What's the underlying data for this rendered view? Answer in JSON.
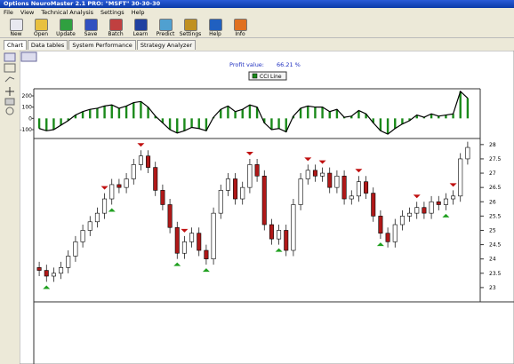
{
  "window": {
    "title": "Options NeuroMaster 2.1 PRO: \"MSFT\" 30-30-30"
  },
  "menu": [
    "File",
    "View",
    "Technical Analysis",
    "Settings",
    "Help"
  ],
  "toolbar": [
    "New",
    "Open",
    "Update",
    "Save",
    "Batch",
    "Learn",
    "Predict",
    "Settings",
    "Help",
    "Info"
  ],
  "tabs": [
    "Chart",
    "Data tables",
    "System Performance",
    "Strategy Analyzer"
  ],
  "profit": {
    "label": "Profit value:",
    "value": "66.21 %"
  },
  "chart_data": [
    {
      "type": "bar",
      "series": [
        {
          "name": "CCI Line",
          "color": "#1a8a1a",
          "values": [
            -90,
            -110,
            -100,
            -60,
            -20,
            30,
            60,
            80,
            90,
            110,
            120,
            90,
            110,
            140,
            150,
            100,
            20,
            -40,
            -100,
            -130,
            -110,
            -80,
            -90,
            -110,
            10,
            80,
            110,
            60,
            80,
            120,
            100,
            -40,
            -100,
            -90,
            -120,
            20,
            90,
            110,
            100,
            100,
            60,
            80,
            10,
            20,
            70,
            40,
            -40,
            -110,
            -140,
            -90,
            -50,
            -20,
            30,
            10,
            40,
            20,
            30,
            40,
            240,
            180
          ]
        }
      ],
      "ylim": [
        -163,
        263
      ],
      "yticks": [
        200,
        100,
        0,
        -100
      ]
    },
    {
      "type": "candlestick",
      "up_color": "#ffffff",
      "down_color": "#b01818",
      "open": [
        23.7,
        23.6,
        23.4,
        23.5,
        23.7,
        24.1,
        24.6,
        25.0,
        25.3,
        25.6,
        26.1,
        26.6,
        26.5,
        26.8,
        27.3,
        27.6,
        27.2,
        26.4,
        25.9,
        25.1,
        24.2,
        24.6,
        24.9,
        24.3,
        24.0,
        25.6,
        26.4,
        26.8,
        26.1,
        26.5,
        27.3,
        26.9,
        25.2,
        24.7,
        25.0,
        24.3,
        25.9,
        26.8,
        27.1,
        26.9,
        27.0,
        26.5,
        26.9,
        26.1,
        26.2,
        26.7,
        26.3,
        25.5,
        24.9,
        24.6,
        25.2,
        25.5,
        25.6,
        25.8,
        25.6,
        26.0,
        25.9,
        26.1,
        26.2,
        27.5
      ],
      "high": [
        23.9,
        23.8,
        23.7,
        23.9,
        24.3,
        24.8,
        25.2,
        25.5,
        25.8,
        26.3,
        26.8,
        26.8,
        27.0,
        27.5,
        27.8,
        27.8,
        27.4,
        26.6,
        26.1,
        25.3,
        24.8,
        25.1,
        25.1,
        24.5,
        25.8,
        26.6,
        27.0,
        27.0,
        26.7,
        27.5,
        27.5,
        27.1,
        25.4,
        25.2,
        25.2,
        26.1,
        27.0,
        27.3,
        27.3,
        27.2,
        27.2,
        27.1,
        27.1,
        26.4,
        26.9,
        26.9,
        26.5,
        25.7,
        25.1,
        25.4,
        25.7,
        25.8,
        26.0,
        26.0,
        26.2,
        26.2,
        26.3,
        26.4,
        27.7,
        28.1
      ],
      "low": [
        23.4,
        23.2,
        23.2,
        23.3,
        23.5,
        23.9,
        24.4,
        24.8,
        25.1,
        25.4,
        25.9,
        26.3,
        26.3,
        26.6,
        27.1,
        27.0,
        26.2,
        25.7,
        24.9,
        24.0,
        24.0,
        24.4,
        24.1,
        23.8,
        23.8,
        25.4,
        26.2,
        25.9,
        25.9,
        26.3,
        26.7,
        25.0,
        24.5,
        24.5,
        24.1,
        24.1,
        25.7,
        26.6,
        26.7,
        26.7,
        26.3,
        26.3,
        25.9,
        25.9,
        26.0,
        26.1,
        25.3,
        24.7,
        24.4,
        24.4,
        25.0,
        25.3,
        25.4,
        25.4,
        25.4,
        25.7,
        25.7,
        25.9,
        26.0,
        27.3
      ],
      "close": [
        23.6,
        23.4,
        23.5,
        23.7,
        24.1,
        24.6,
        25.0,
        25.3,
        25.6,
        26.1,
        26.6,
        26.5,
        26.8,
        27.3,
        27.6,
        27.2,
        26.4,
        25.9,
        25.1,
        24.2,
        24.6,
        24.9,
        24.3,
        24.0,
        25.6,
        26.4,
        26.8,
        26.1,
        26.5,
        27.3,
        26.9,
        25.2,
        24.7,
        25.0,
        24.3,
        25.9,
        26.8,
        27.1,
        26.9,
        27.0,
        26.5,
        26.9,
        26.1,
        26.2,
        26.7,
        26.3,
        25.5,
        24.9,
        24.6,
        25.2,
        25.5,
        25.6,
        25.8,
        25.6,
        26.0,
        25.9,
        26.1,
        26.2,
        27.5,
        27.9
      ],
      "sell_signals": [
        9,
        14,
        20,
        29,
        37,
        39,
        44,
        52,
        57
      ],
      "buy_signals": [
        1,
        10,
        19,
        23,
        33,
        47,
        56
      ],
      "ylim": [
        22.5,
        28.15
      ],
      "yticks": [
        28,
        27.5,
        27,
        26.5,
        26,
        25.5,
        25,
        24.5,
        24,
        23.5,
        23
      ]
    }
  ]
}
